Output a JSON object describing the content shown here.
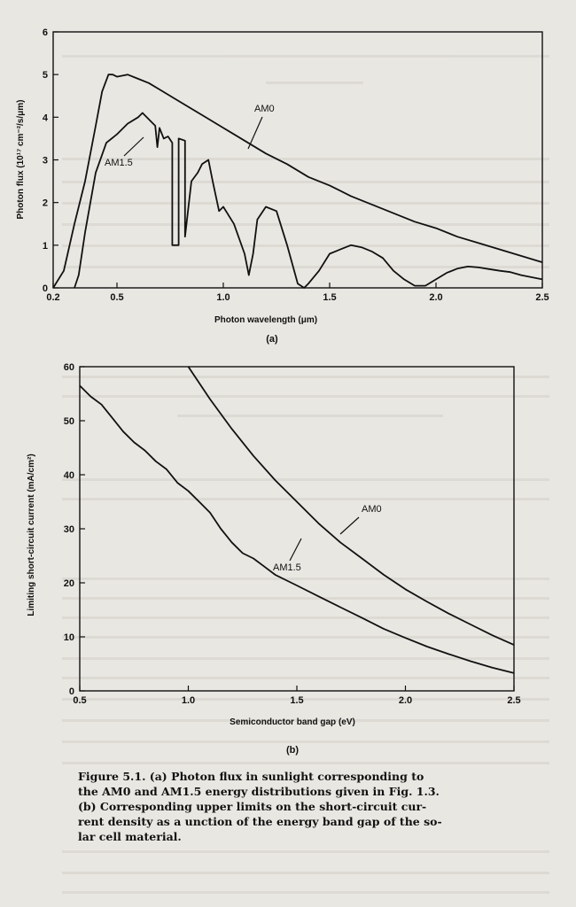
{
  "charts": [
    {
      "panel_label": "(a)",
      "annotations": [
        "AM0",
        "AM1.5"
      ]
    },
    {
      "panel_label": "(b)",
      "annotations": [
        "AM0",
        "AM1.5"
      ]
    }
  ],
  "chart_data": [
    {
      "type": "line",
      "title": "",
      "xlabel": "Photon wavelength (μm)",
      "ylabel": "Photon flux (10¹⁷ cm⁻²/s/μm)",
      "xlim": [
        0.2,
        2.5
      ],
      "ylim": [
        0,
        6
      ],
      "xticks": [
        0.2,
        0.5,
        1.0,
        1.5,
        2.0,
        2.5
      ],
      "xtick_labels": [
        "0.2",
        "0.5",
        "1.0",
        "1.5",
        "2.0",
        "2.5"
      ],
      "yticks": [
        0,
        1,
        2,
        3,
        4,
        5,
        6
      ],
      "ytick_labels": [
        "0",
        "1",
        "2",
        "3",
        "4",
        "5",
        "6"
      ],
      "grid": false,
      "legend": "none (curves labeled inline)",
      "series": [
        {
          "name": "AM0",
          "x": [
            0.2,
            0.25,
            0.3,
            0.35,
            0.4,
            0.43,
            0.46,
            0.48,
            0.5,
            0.55,
            0.6,
            0.65,
            0.7,
            0.8,
            0.9,
            1.0,
            1.1,
            1.2,
            1.3,
            1.4,
            1.5,
            1.6,
            1.7,
            1.8,
            1.9,
            2.0,
            2.1,
            2.2,
            2.3,
            2.4,
            2.5
          ],
          "y": [
            0.0,
            0.4,
            1.5,
            2.5,
            3.8,
            4.6,
            5.0,
            5.0,
            4.95,
            5.0,
            4.9,
            4.8,
            4.65,
            4.35,
            4.05,
            3.75,
            3.45,
            3.15,
            2.9,
            2.6,
            2.4,
            2.15,
            1.95,
            1.75,
            1.55,
            1.4,
            1.2,
            1.05,
            0.9,
            0.75,
            0.6
          ]
        },
        {
          "name": "AM1.5",
          "x": [
            0.3,
            0.32,
            0.35,
            0.4,
            0.45,
            0.5,
            0.55,
            0.6,
            0.62,
            0.65,
            0.68,
            0.69,
            0.7,
            0.72,
            0.74,
            0.76,
            0.76,
            0.79,
            0.79,
            0.82,
            0.82,
            0.85,
            0.88,
            0.9,
            0.93,
            0.95,
            0.98,
            1.0,
            1.05,
            1.1,
            1.12,
            1.14,
            1.16,
            1.2,
            1.25,
            1.3,
            1.35,
            1.38,
            1.4,
            1.45,
            1.5,
            1.55,
            1.6,
            1.65,
            1.7,
            1.75,
            1.8,
            1.85,
            1.9,
            1.95,
            2.0,
            2.05,
            2.1,
            2.15,
            2.2,
            2.25,
            2.3,
            2.35,
            2.4,
            2.45,
            2.5
          ],
          "y": [
            0.0,
            0.3,
            1.3,
            2.7,
            3.4,
            3.6,
            3.85,
            4.0,
            4.1,
            3.95,
            3.8,
            3.3,
            3.75,
            3.5,
            3.55,
            3.4,
            1.0,
            1.0,
            3.5,
            3.45,
            1.2,
            2.5,
            2.7,
            2.9,
            3.0,
            2.5,
            1.8,
            1.9,
            1.5,
            0.8,
            0.3,
            0.8,
            1.6,
            1.9,
            1.8,
            1.0,
            0.1,
            0.0,
            0.1,
            0.4,
            0.8,
            0.9,
            1.0,
            0.95,
            0.85,
            0.7,
            0.4,
            0.2,
            0.05,
            0.05,
            0.2,
            0.35,
            0.45,
            0.5,
            0.48,
            0.44,
            0.4,
            0.37,
            0.3,
            0.25,
            0.2
          ]
        }
      ]
    },
    {
      "type": "line",
      "title": "",
      "xlabel": "Semiconductor band gap (eV)",
      "ylabel": "Limiting short-circuit current (mA/cm²)",
      "xlim": [
        0.5,
        2.5
      ],
      "ylim": [
        0,
        60
      ],
      "xticks": [
        0.5,
        1.0,
        1.5,
        2.0,
        2.5
      ],
      "xtick_labels": [
        "0.5",
        "1.0",
        "1.5",
        "2.0",
        "2.5"
      ],
      "yticks": [
        0,
        10,
        20,
        30,
        40,
        50,
        60
      ],
      "ytick_labels": [
        "0",
        "10",
        "20",
        "30",
        "40",
        "50",
        "60"
      ],
      "grid": false,
      "legend": "none (curves labeled inline)",
      "series": [
        {
          "name": "AM0",
          "x": [
            1.0,
            1.1,
            1.2,
            1.3,
            1.4,
            1.5,
            1.6,
            1.7,
            1.8,
            1.9,
            2.0,
            2.1,
            2.2,
            2.3,
            2.4,
            2.5
          ],
          "y": [
            60.0,
            54.0,
            48.5,
            43.5,
            39.0,
            35.0,
            31.0,
            27.5,
            24.5,
            21.5,
            18.8,
            16.5,
            14.3,
            12.3,
            10.3,
            8.5
          ]
        },
        {
          "name": "AM1.5",
          "x": [
            0.5,
            0.55,
            0.6,
            0.65,
            0.7,
            0.75,
            0.8,
            0.85,
            0.9,
            0.95,
            1.0,
            1.05,
            1.1,
            1.15,
            1.2,
            1.25,
            1.3,
            1.35,
            1.4,
            1.45,
            1.5,
            1.6,
            1.7,
            1.8,
            1.9,
            2.0,
            2.1,
            2.2,
            2.3,
            2.4,
            2.5
          ],
          "y": [
            56.5,
            54.5,
            53.0,
            50.5,
            48.0,
            46.0,
            44.5,
            42.5,
            41.0,
            38.5,
            37.0,
            35.0,
            33.0,
            30.0,
            27.5,
            25.5,
            24.5,
            23.0,
            21.5,
            20.5,
            19.5,
            17.5,
            15.5,
            13.5,
            11.5,
            9.8,
            8.2,
            6.8,
            5.5,
            4.3,
            3.3
          ]
        }
      ]
    }
  ],
  "caption": {
    "line1": "Figure 5.1.   (a)   Photon flux in sunlight corresponding to",
    "line2": "the AM0 and AM1.5 energy distributions given in Fig. 1.3.",
    "line3": "(b)   Corresponding upper limits on the short-circuit cur-",
    "line4": "rent density as a  unction of the energy band gap of the so-",
    "line5": "lar cell material."
  }
}
